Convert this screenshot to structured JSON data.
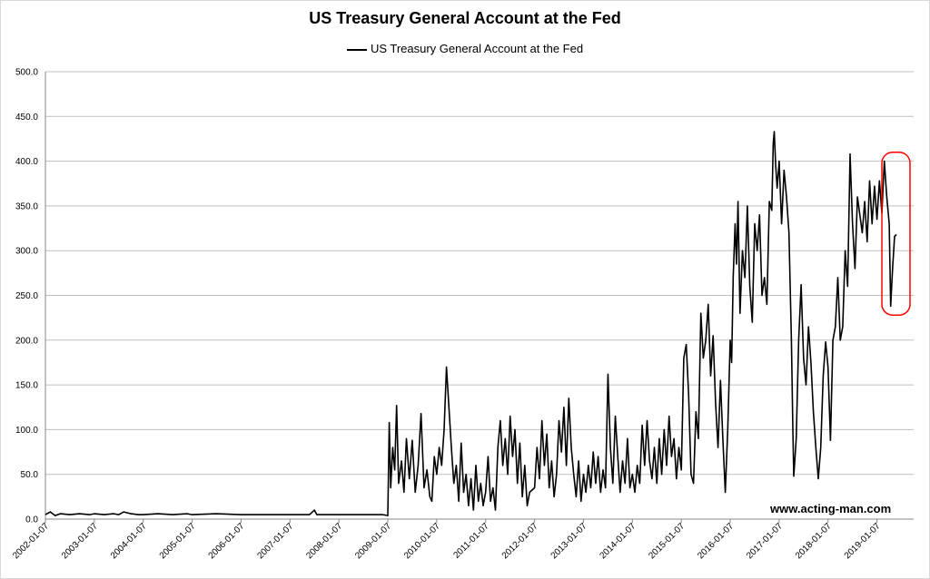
{
  "chart_data": {
    "type": "line",
    "title": "US Treasury General Account at the Fed",
    "legend": [
      "US Treasury General Account at the Fed"
    ],
    "legend_position": "top",
    "ylim": [
      0,
      500
    ],
    "y_ticks": [
      "0.0",
      "50.0",
      "100.0",
      "150.0",
      "200.0",
      "250.0",
      "300.0",
      "350.0",
      "400.0",
      "450.0",
      "500.0"
    ],
    "x_ticks": [
      "2002-01-07",
      "2003-01-07",
      "2004-01-07",
      "2005-01-07",
      "2006-01-07",
      "2007-01-07",
      "2008-01-07",
      "2009-01-07",
      "2010-01-07",
      "2011-01-07",
      "2012-01-07",
      "2013-01-07",
      "2014-01-07",
      "2015-01-07",
      "2016-01-07",
      "2017-01-07",
      "2018-01-07",
      "2019-01-07"
    ],
    "grid": true,
    "series": [
      {
        "name": "US Treasury General Account at the Fed",
        "color": "#000000",
        "points": [
          [
            2002.0,
            5
          ],
          [
            2002.1,
            8
          ],
          [
            2002.2,
            4
          ],
          [
            2002.3,
            6
          ],
          [
            2002.5,
            5
          ],
          [
            2002.7,
            6
          ],
          [
            2002.9,
            5
          ],
          [
            2003.0,
            6
          ],
          [
            2003.2,
            5
          ],
          [
            2003.4,
            6
          ],
          [
            2003.5,
            5
          ],
          [
            2003.6,
            8
          ],
          [
            2003.75,
            6
          ],
          [
            2003.9,
            5
          ],
          [
            2004.0,
            5
          ],
          [
            2004.3,
            6
          ],
          [
            2004.6,
            5
          ],
          [
            2004.9,
            6
          ],
          [
            2005.0,
            5
          ],
          [
            2005.5,
            6
          ],
          [
            2006.0,
            5
          ],
          [
            2006.5,
            5
          ],
          [
            2007.0,
            5
          ],
          [
            2007.4,
            5
          ],
          [
            2007.5,
            10
          ],
          [
            2007.55,
            5
          ],
          [
            2008.0,
            5
          ],
          [
            2008.5,
            5
          ],
          [
            2008.9,
            5
          ],
          [
            2009.0,
            4
          ],
          [
            2009.03,
            108
          ],
          [
            2009.06,
            35
          ],
          [
            2009.1,
            80
          ],
          [
            2009.14,
            55
          ],
          [
            2009.18,
            127
          ],
          [
            2009.22,
            40
          ],
          [
            2009.28,
            65
          ],
          [
            2009.33,
            30
          ],
          [
            2009.38,
            90
          ],
          [
            2009.44,
            45
          ],
          [
            2009.5,
            88
          ],
          [
            2009.56,
            30
          ],
          [
            2009.62,
            60
          ],
          [
            2009.68,
            118
          ],
          [
            2009.74,
            35
          ],
          [
            2009.8,
            55
          ],
          [
            2009.86,
            25
          ],
          [
            2009.9,
            20
          ],
          [
            2009.95,
            70
          ],
          [
            2010.0,
            50
          ],
          [
            2010.05,
            80
          ],
          [
            2010.1,
            60
          ],
          [
            2010.15,
            100
          ],
          [
            2010.2,
            170
          ],
          [
            2010.25,
            125
          ],
          [
            2010.3,
            80
          ],
          [
            2010.35,
            40
          ],
          [
            2010.4,
            60
          ],
          [
            2010.45,
            20
          ],
          [
            2010.5,
            85
          ],
          [
            2010.55,
            30
          ],
          [
            2010.6,
            50
          ],
          [
            2010.65,
            15
          ],
          [
            2010.7,
            45
          ],
          [
            2010.75,
            10
          ],
          [
            2010.8,
            60
          ],
          [
            2010.85,
            20
          ],
          [
            2010.9,
            40
          ],
          [
            2010.95,
            15
          ],
          [
            2011.0,
            30
          ],
          [
            2011.05,
            70
          ],
          [
            2011.1,
            20
          ],
          [
            2011.15,
            35
          ],
          [
            2011.2,
            10
          ],
          [
            2011.25,
            80
          ],
          [
            2011.3,
            110
          ],
          [
            2011.35,
            60
          ],
          [
            2011.4,
            90
          ],
          [
            2011.45,
            50
          ],
          [
            2011.5,
            115
          ],
          [
            2011.55,
            70
          ],
          [
            2011.6,
            100
          ],
          [
            2011.65,
            40
          ],
          [
            2011.7,
            85
          ],
          [
            2011.75,
            25
          ],
          [
            2011.8,
            60
          ],
          [
            2011.85,
            15
          ],
          [
            2011.9,
            30
          ],
          [
            2012.0,
            35
          ],
          [
            2012.05,
            80
          ],
          [
            2012.1,
            45
          ],
          [
            2012.15,
            110
          ],
          [
            2012.2,
            60
          ],
          [
            2012.25,
            95
          ],
          [
            2012.3,
            35
          ],
          [
            2012.35,
            65
          ],
          [
            2012.4,
            25
          ],
          [
            2012.45,
            50
          ],
          [
            2012.5,
            110
          ],
          [
            2012.55,
            75
          ],
          [
            2012.6,
            125
          ],
          [
            2012.65,
            60
          ],
          [
            2012.7,
            135
          ],
          [
            2012.75,
            80
          ],
          [
            2012.8,
            50
          ],
          [
            2012.85,
            25
          ],
          [
            2012.9,
            65
          ],
          [
            2012.95,
            20
          ],
          [
            2013.0,
            50
          ],
          [
            2013.05,
            30
          ],
          [
            2013.1,
            60
          ],
          [
            2013.15,
            35
          ],
          [
            2013.2,
            75
          ],
          [
            2013.25,
            40
          ],
          [
            2013.3,
            70
          ],
          [
            2013.35,
            30
          ],
          [
            2013.4,
            55
          ],
          [
            2013.45,
            35
          ],
          [
            2013.5,
            162
          ],
          [
            2013.55,
            80
          ],
          [
            2013.6,
            40
          ],
          [
            2013.65,
            115
          ],
          [
            2013.7,
            70
          ],
          [
            2013.75,
            30
          ],
          [
            2013.8,
            65
          ],
          [
            2013.85,
            40
          ],
          [
            2013.9,
            90
          ],
          [
            2013.95,
            35
          ],
          [
            2014.0,
            50
          ],
          [
            2014.05,
            30
          ],
          [
            2014.1,
            60
          ],
          [
            2014.15,
            40
          ],
          [
            2014.2,
            105
          ],
          [
            2014.25,
            60
          ],
          [
            2014.3,
            110
          ],
          [
            2014.35,
            65
          ],
          [
            2014.4,
            45
          ],
          [
            2014.45,
            80
          ],
          [
            2014.5,
            40
          ],
          [
            2014.55,
            90
          ],
          [
            2014.6,
            50
          ],
          [
            2014.65,
            100
          ],
          [
            2014.7,
            60
          ],
          [
            2014.75,
            115
          ],
          [
            2014.8,
            70
          ],
          [
            2014.85,
            90
          ],
          [
            2014.9,
            45
          ],
          [
            2014.95,
            80
          ],
          [
            2015.0,
            55
          ],
          [
            2015.05,
            180
          ],
          [
            2015.1,
            195
          ],
          [
            2015.15,
            140
          ],
          [
            2015.2,
            50
          ],
          [
            2015.25,
            40
          ],
          [
            2015.3,
            120
          ],
          [
            2015.35,
            90
          ],
          [
            2015.4,
            230
          ],
          [
            2015.45,
            180
          ],
          [
            2015.5,
            200
          ],
          [
            2015.55,
            240
          ],
          [
            2015.6,
            160
          ],
          [
            2015.65,
            205
          ],
          [
            2015.7,
            130
          ],
          [
            2015.75,
            80
          ],
          [
            2015.8,
            155
          ],
          [
            2015.85,
            90
          ],
          [
            2015.9,
            30
          ],
          [
            2015.95,
            100
          ],
          [
            2016.0,
            200
          ],
          [
            2016.03,
            175
          ],
          [
            2016.06,
            270
          ],
          [
            2016.1,
            330
          ],
          [
            2016.13,
            285
          ],
          [
            2016.16,
            355
          ],
          [
            2016.2,
            230
          ],
          [
            2016.25,
            300
          ],
          [
            2016.3,
            270
          ],
          [
            2016.35,
            350
          ],
          [
            2016.4,
            260
          ],
          [
            2016.45,
            220
          ],
          [
            2016.5,
            330
          ],
          [
            2016.55,
            300
          ],
          [
            2016.6,
            340
          ],
          [
            2016.65,
            250
          ],
          [
            2016.7,
            270
          ],
          [
            2016.75,
            240
          ],
          [
            2016.8,
            355
          ],
          [
            2016.85,
            345
          ],
          [
            2016.88,
            420
          ],
          [
            2016.9,
            433
          ],
          [
            2016.93,
            395
          ],
          [
            2016.96,
            370
          ],
          [
            2017.0,
            400
          ],
          [
            2017.05,
            330
          ],
          [
            2017.1,
            390
          ],
          [
            2017.15,
            360
          ],
          [
            2017.2,
            320
          ],
          [
            2017.25,
            200
          ],
          [
            2017.28,
            100
          ],
          [
            2017.3,
            48
          ],
          [
            2017.35,
            90
          ],
          [
            2017.4,
            200
          ],
          [
            2017.45,
            262
          ],
          [
            2017.5,
            180
          ],
          [
            2017.55,
            150
          ],
          [
            2017.6,
            215
          ],
          [
            2017.65,
            175
          ],
          [
            2017.7,
            120
          ],
          [
            2017.75,
            80
          ],
          [
            2017.8,
            45
          ],
          [
            2017.85,
            80
          ],
          [
            2017.9,
            160
          ],
          [
            2017.95,
            198
          ],
          [
            2018.0,
            170
          ],
          [
            2018.05,
            88
          ],
          [
            2018.1,
            200
          ],
          [
            2018.15,
            215
          ],
          [
            2018.2,
            270
          ],
          [
            2018.25,
            200
          ],
          [
            2018.3,
            215
          ],
          [
            2018.35,
            300
          ],
          [
            2018.4,
            260
          ],
          [
            2018.45,
            408
          ],
          [
            2018.5,
            330
          ],
          [
            2018.55,
            280
          ],
          [
            2018.6,
            360
          ],
          [
            2018.65,
            340
          ],
          [
            2018.7,
            320
          ],
          [
            2018.75,
            355
          ],
          [
            2018.8,
            310
          ],
          [
            2018.85,
            378
          ],
          [
            2018.9,
            330
          ],
          [
            2018.95,
            372
          ],
          [
            2019.0,
            335
          ],
          [
            2019.05,
            378
          ],
          [
            2019.1,
            342
          ],
          [
            2019.15,
            400
          ],
          [
            2019.2,
            360
          ],
          [
            2019.25,
            330
          ],
          [
            2019.28,
            238
          ],
          [
            2019.32,
            280
          ],
          [
            2019.36,
            316
          ],
          [
            2019.4,
            318
          ]
        ]
      }
    ],
    "annotation": "red rounded box around latest data (2019)",
    "highlight_color": "#ff0000"
  },
  "watermark": "www.acting-man.com"
}
